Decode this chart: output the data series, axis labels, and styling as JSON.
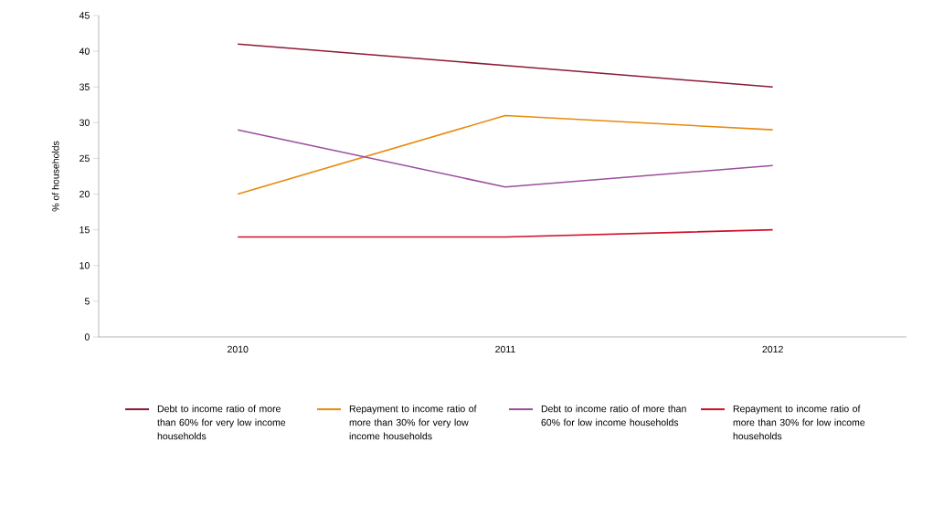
{
  "chart_data": {
    "type": "line",
    "ylabel": "% of households",
    "categories": [
      "2010",
      "2011",
      "2012"
    ],
    "ylim": [
      0,
      45
    ],
    "yticks": [
      0,
      5,
      10,
      15,
      20,
      25,
      30,
      35,
      40,
      45
    ],
    "grid": false,
    "legend": "bottom",
    "marker": "none",
    "line_style": "solid",
    "series": [
      {
        "name": "Debt to income ratio of more than 60% for very low income households",
        "color": "#8c1a35",
        "values": [
          41,
          38,
          35
        ]
      },
      {
        "name": "Repayment to income ratio of more than 30% for very low income households",
        "color": "#e8890c",
        "values": [
          20,
          31,
          29
        ]
      },
      {
        "name": "Debt to income ratio of more than 60% for low income households",
        "color": "#9b4f9e",
        "values": [
          29,
          21,
          24
        ]
      },
      {
        "name": "Repayment to income ratio of more than 30% for low income households",
        "color": "#d0102a",
        "values": [
          14,
          14,
          15
        ]
      }
    ]
  }
}
